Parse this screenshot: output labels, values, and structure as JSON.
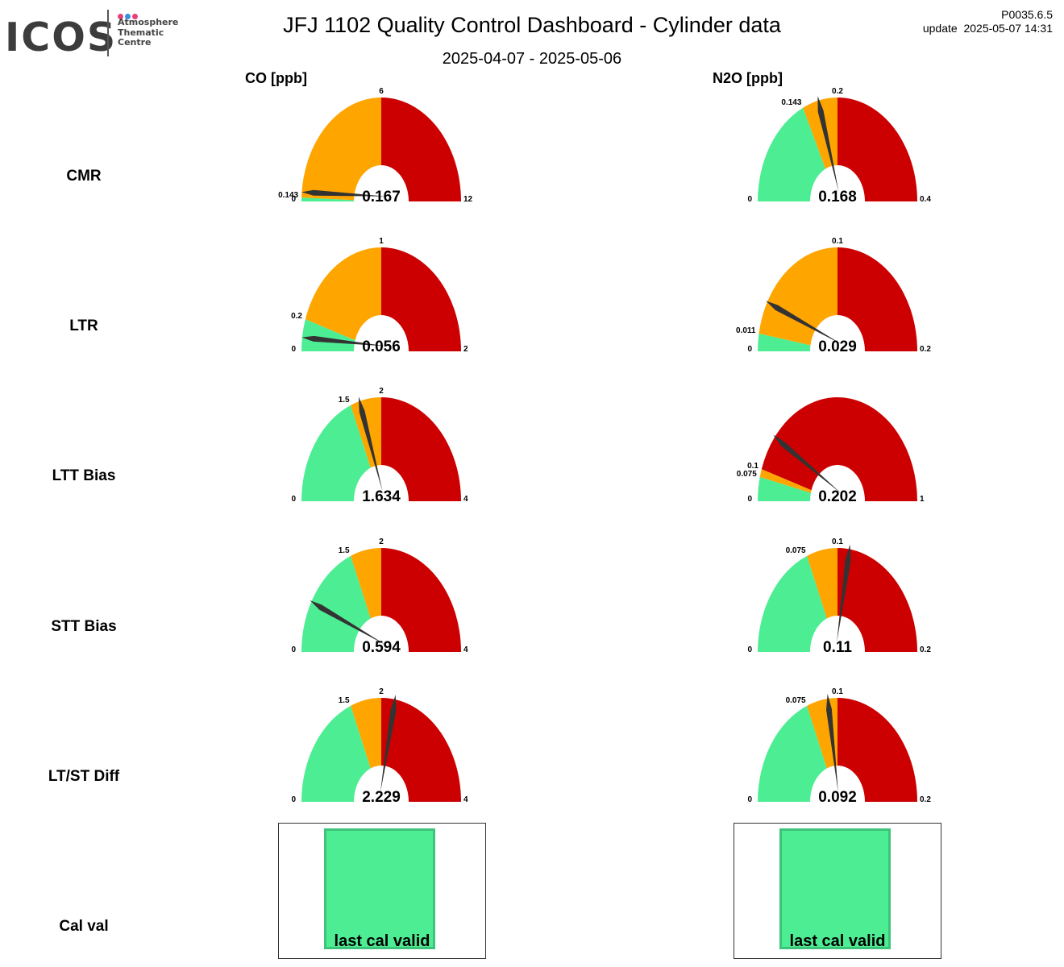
{
  "header": {
    "logo_word": "ICOS",
    "logo_sub": [
      "Atmosphere",
      "Thematic",
      "Centre"
    ],
    "title": "JFJ 1102 Quality Control Dashboard - Cylinder data",
    "subtitle": "2025-04-07 - 2025-05-06",
    "version": "P0035.6.5",
    "update": "update  2025-05-07 14:31"
  },
  "colors": {
    "good": "#4ded94",
    "warn": "#ffa500",
    "bad": "#cc0000",
    "needle": "#333333",
    "logo_dots": [
      "#e8407d",
      "#3c8ede",
      "#e8407d"
    ]
  },
  "columns": [
    "CO [ppb]",
    "N2O [ppb]"
  ],
  "rows": [
    "CMR",
    "LTR",
    "LTT Bias",
    "STT Bias",
    "LT/ST Diff",
    "Cal val"
  ],
  "chart_data": [
    {
      "type": "gauge",
      "row": "CMR",
      "column": "CO [ppb]",
      "min": 0,
      "max": 12,
      "bands": [
        {
          "from": 0,
          "to": 0.143,
          "color": "good"
        },
        {
          "from": 0.143,
          "to": 6,
          "color": "warn"
        },
        {
          "from": 6,
          "to": 12,
          "color": "bad"
        }
      ],
      "ticks": [
        "0",
        "0.143",
        "6",
        "12"
      ],
      "value": 0.167,
      "value_label": "0.167"
    },
    {
      "type": "gauge",
      "row": "CMR",
      "column": "N2O [ppb]",
      "min": 0,
      "max": 0.4,
      "bands": [
        {
          "from": 0,
          "to": 0.143,
          "color": "good"
        },
        {
          "from": 0.143,
          "to": 0.2,
          "color": "warn"
        },
        {
          "from": 0.2,
          "to": 0.4,
          "color": "bad"
        }
      ],
      "ticks": [
        "0",
        "0.143",
        "0.2",
        "0.4"
      ],
      "value": 0.168,
      "value_label": "0.168"
    },
    {
      "type": "gauge",
      "row": "LTR",
      "column": "CO [ppb]",
      "min": 0,
      "max": 2,
      "bands": [
        {
          "from": 0,
          "to": 0.2,
          "color": "good"
        },
        {
          "from": 0.2,
          "to": 1,
          "color": "warn"
        },
        {
          "from": 1,
          "to": 2,
          "color": "bad"
        }
      ],
      "ticks": [
        "0",
        "0.2",
        "1",
        "2"
      ],
      "value": 0.056,
      "value_label": "0.056"
    },
    {
      "type": "gauge",
      "row": "LTR",
      "column": "N2O [ppb]",
      "min": 0,
      "max": 0.2,
      "bands": [
        {
          "from": 0,
          "to": 0.011,
          "color": "good"
        },
        {
          "from": 0.011,
          "to": 0.1,
          "color": "warn"
        },
        {
          "from": 0.1,
          "to": 0.2,
          "color": "bad"
        }
      ],
      "ticks": [
        "0",
        "0.011",
        "0.1",
        "0.2"
      ],
      "value": 0.029,
      "value_label": "0.029"
    },
    {
      "type": "gauge",
      "row": "LTT Bias",
      "column": "CO [ppb]",
      "min": 0,
      "max": 4,
      "bands": [
        {
          "from": 0,
          "to": 1.5,
          "color": "good"
        },
        {
          "from": 1.5,
          "to": 2,
          "color": "warn"
        },
        {
          "from": 2,
          "to": 4,
          "color": "bad"
        }
      ],
      "ticks": [
        "0",
        "1.5",
        "2",
        "4"
      ],
      "value": 1.634,
      "value_label": "1.634"
    },
    {
      "type": "gauge",
      "row": "LTT Bias",
      "column": "N2O [ppb]",
      "min": 0,
      "max": 1,
      "bands": [
        {
          "from": 0,
          "to": 0.075,
          "color": "good"
        },
        {
          "from": 0.075,
          "to": 0.1,
          "color": "warn"
        },
        {
          "from": 0.1,
          "to": 1,
          "color": "bad"
        }
      ],
      "ticks": [
        "0",
        "0.075",
        "0.1",
        "1"
      ],
      "value": 0.202,
      "value_label": "0.202"
    },
    {
      "type": "gauge",
      "row": "STT Bias",
      "column": "CO [ppb]",
      "min": 0,
      "max": 4,
      "bands": [
        {
          "from": 0,
          "to": 1.5,
          "color": "good"
        },
        {
          "from": 1.5,
          "to": 2,
          "color": "warn"
        },
        {
          "from": 2,
          "to": 4,
          "color": "bad"
        }
      ],
      "ticks": [
        "0",
        "1.5",
        "2",
        "4"
      ],
      "value": 0.594,
      "value_label": "0.594"
    },
    {
      "type": "gauge",
      "row": "STT Bias",
      "column": "N2O [ppb]",
      "min": 0,
      "max": 0.2,
      "bands": [
        {
          "from": 0,
          "to": 0.075,
          "color": "good"
        },
        {
          "from": 0.075,
          "to": 0.1,
          "color": "warn"
        },
        {
          "from": 0.1,
          "to": 0.2,
          "color": "bad"
        }
      ],
      "ticks": [
        "0",
        "0.075",
        "0.1",
        "0.2"
      ],
      "value": 0.11,
      "value_label": "0.11"
    },
    {
      "type": "gauge",
      "row": "LT/ST Diff",
      "column": "CO [ppb]",
      "min": 0,
      "max": 4,
      "bands": [
        {
          "from": 0,
          "to": 1.5,
          "color": "good"
        },
        {
          "from": 1.5,
          "to": 2,
          "color": "warn"
        },
        {
          "from": 2,
          "to": 4,
          "color": "bad"
        }
      ],
      "ticks": [
        "0",
        "1.5",
        "2",
        "4"
      ],
      "value": 2.229,
      "value_label": "2.229"
    },
    {
      "type": "gauge",
      "row": "LT/ST Diff",
      "column": "N2O [ppb]",
      "min": 0,
      "max": 0.2,
      "bands": [
        {
          "from": 0,
          "to": 0.075,
          "color": "good"
        },
        {
          "from": 0.075,
          "to": 0.1,
          "color": "warn"
        },
        {
          "from": 0.1,
          "to": 0.2,
          "color": "bad"
        }
      ],
      "ticks": [
        "0",
        "0.075",
        "0.1",
        "0.2"
      ],
      "value": 0.092,
      "value_label": "0.092"
    }
  ],
  "cal_val": [
    {
      "column": "CO [ppb]",
      "status": "last cal valid",
      "color": "good"
    },
    {
      "column": "N2O [ppb]",
      "status": "last cal valid",
      "color": "good"
    }
  ]
}
